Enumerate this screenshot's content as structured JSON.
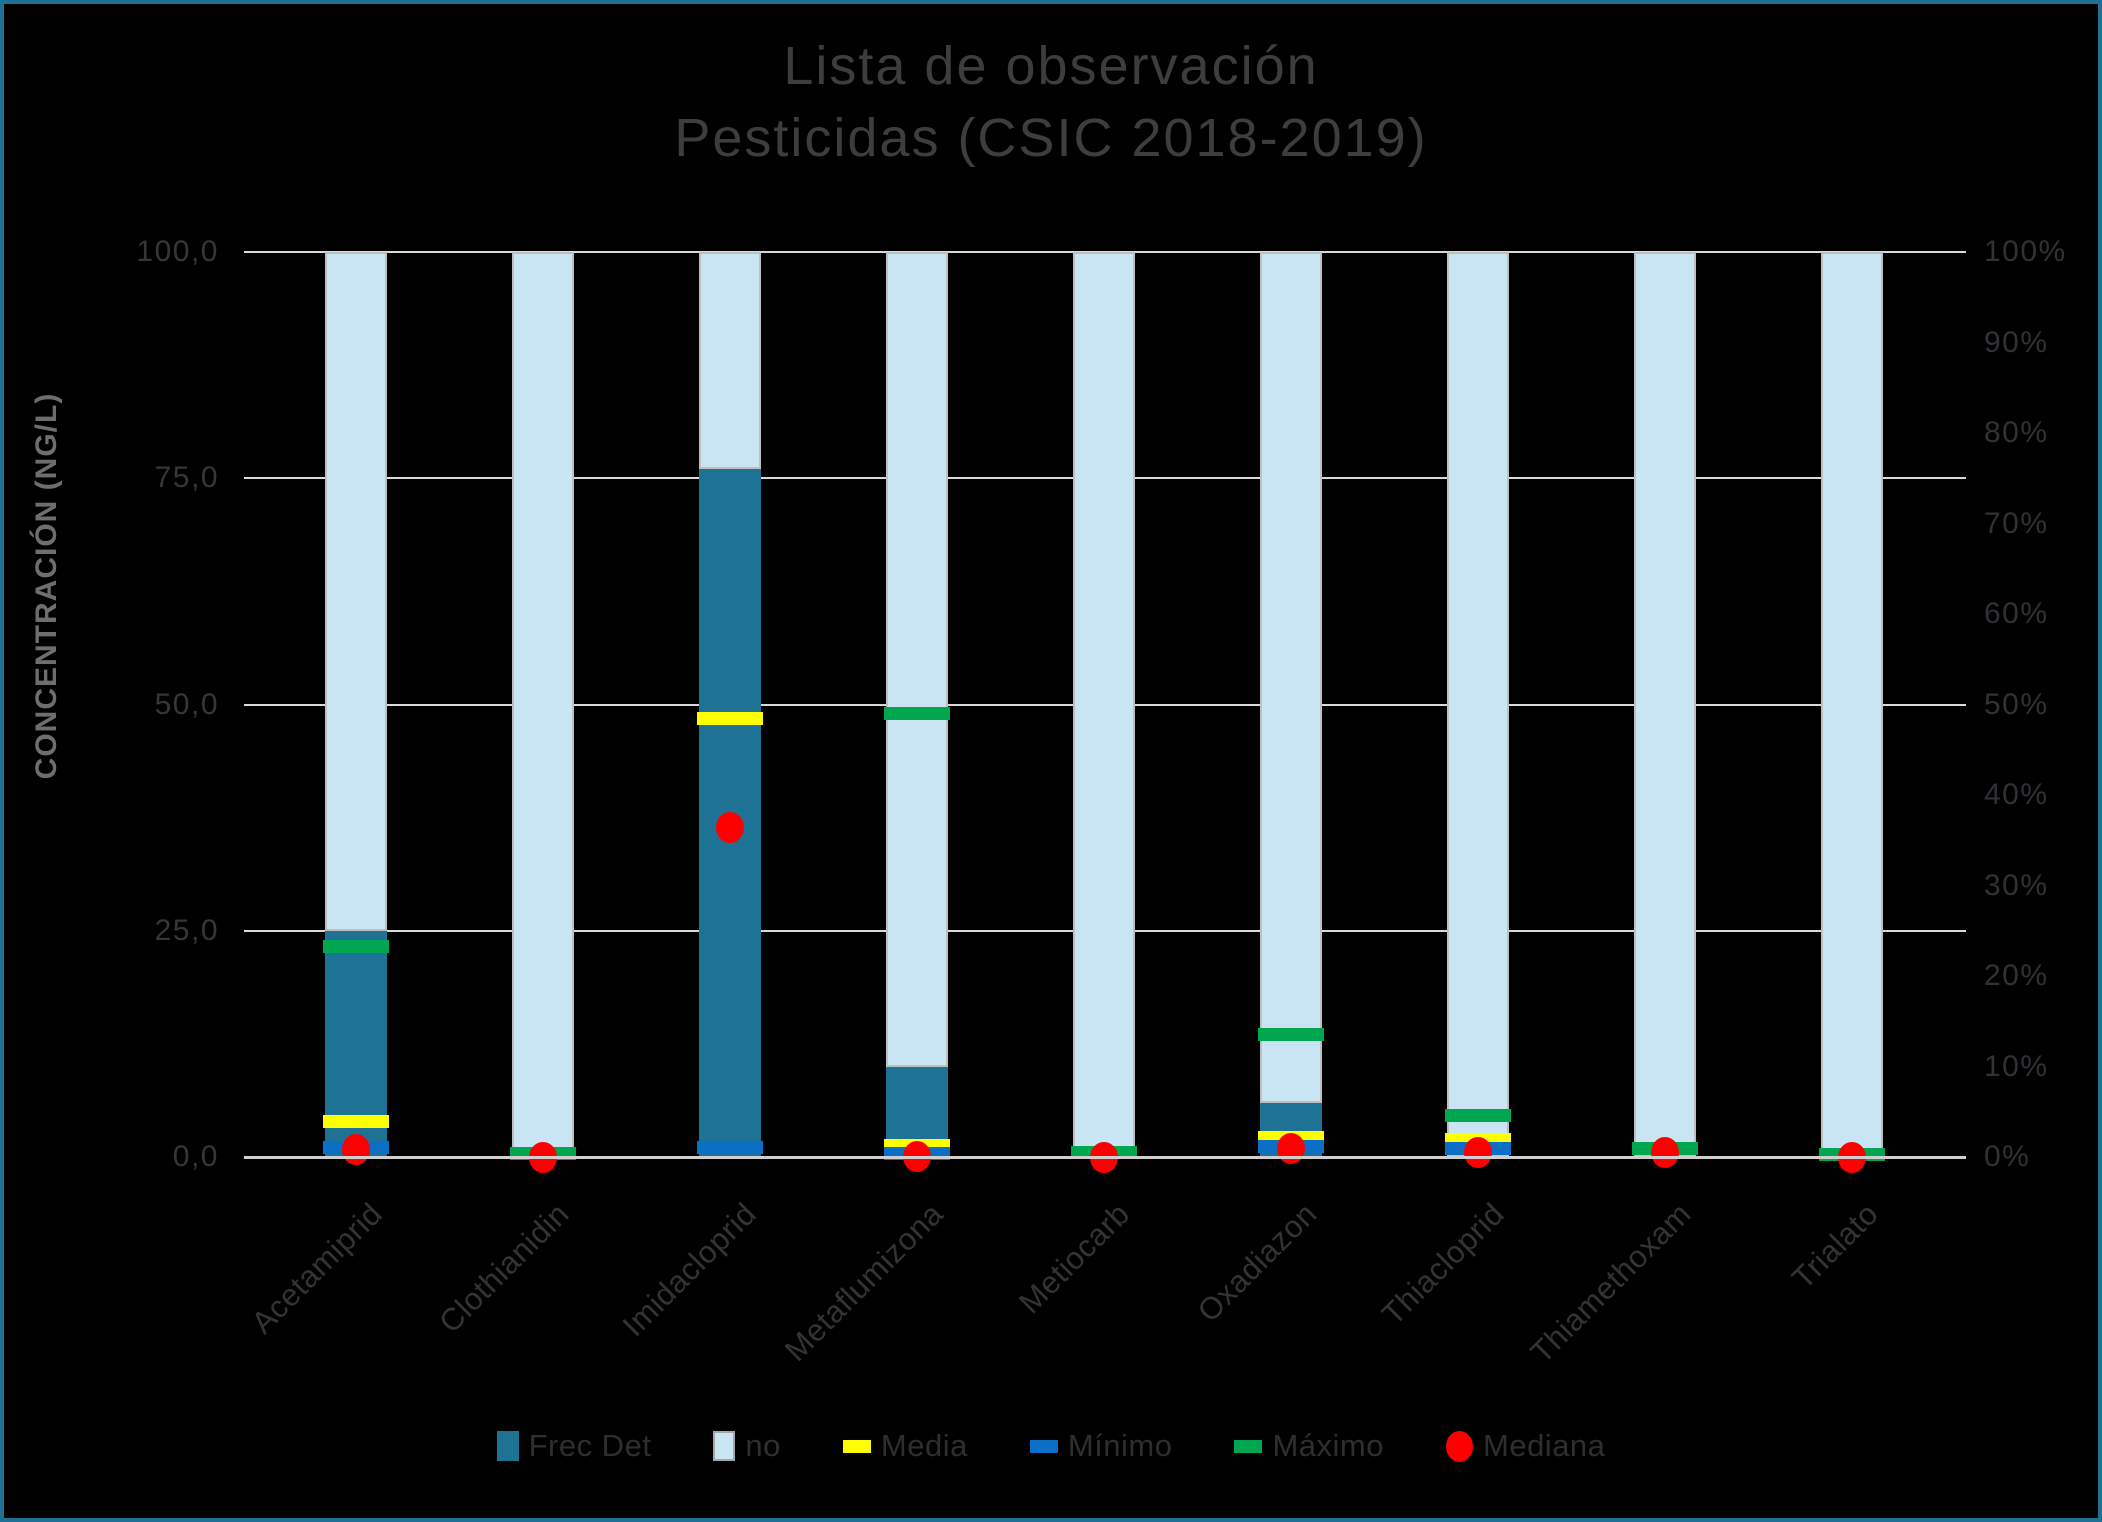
{
  "window": {
    "background_color": "#000000",
    "frame_border_color": "#1E7193"
  },
  "title": {
    "line1": "Lista de observación",
    "line2": "Pesticidas (CSIC 2018-2019)"
  },
  "axes": {
    "left": {
      "title": "CONCENTRACIÓN (NG/L)",
      "ticks": [
        {
          "label": "100,0",
          "value": 100
        },
        {
          "label": "75,0",
          "value": 75
        },
        {
          "label": "50,0",
          "value": 50
        },
        {
          "label": "25,0",
          "value": 25
        },
        {
          "label": "0,0",
          "value": 0
        }
      ],
      "range": [
        0,
        100
      ]
    },
    "right": {
      "ticks": [
        {
          "label": "100%",
          "value": 100
        },
        {
          "label": "90%",
          "value": 90
        },
        {
          "label": "80%",
          "value": 80
        },
        {
          "label": "70%",
          "value": 70
        },
        {
          "label": "60%",
          "value": 60
        },
        {
          "label": "50%",
          "value": 50
        },
        {
          "label": "40%",
          "value": 40
        },
        {
          "label": "30%",
          "value": 30
        },
        {
          "label": "20%",
          "value": 20
        },
        {
          "label": "10%",
          "value": 10
        },
        {
          "label": "0%",
          "value": 0
        }
      ],
      "range": [
        0,
        100
      ]
    },
    "gridlines_at": [
      100,
      75,
      50,
      25
    ],
    "gridline_color": "#D9D9D9",
    "axisline_color": "#D0CECE"
  },
  "legend": [
    {
      "label": "Frec Det",
      "swatch": "square",
      "color": "#1E7394"
    },
    {
      "label": "no",
      "swatch": "square-bordered",
      "color": "#C9E4F2"
    },
    {
      "label": "Media",
      "swatch": "dash",
      "color": "#FFFF00"
    },
    {
      "label": "Mínimo",
      "swatch": "dash",
      "color": "#0B70C5"
    },
    {
      "label": "Máximo",
      "swatch": "dash",
      "color": "#00A650"
    },
    {
      "label": "Mediana",
      "swatch": "dot",
      "color": "#FF0000"
    }
  ],
  "chart_data": {
    "type": "bar",
    "subtype": "100%-stacked-columns-with-value-markers",
    "title": "Lista de observación Pesticidas (CSIC 2018-2019)",
    "xlabel": "",
    "ylabel": "CONCENTRACIÓN (NG/L)",
    "ylim_left": [
      0,
      100
    ],
    "ylim_right_pct": [
      0,
      100
    ],
    "grid": true,
    "legend_position": "bottom",
    "categories": [
      "Acetamiprid",
      "Clothianidin",
      "Imidacloprid",
      "Metaflumizona",
      "Metiocarb",
      "Oxadiazon",
      "Thiacloprid",
      "Thiamethoxam",
      "Trialato"
    ],
    "series": [
      {
        "name": "Frec Det",
        "kind": "stacked-bar",
        "axis": "right",
        "unit": "%",
        "color": "#1E7394",
        "values": [
          25,
          0,
          76,
          10,
          0,
          6,
          0,
          0,
          0
        ]
      },
      {
        "name": "no",
        "kind": "stacked-bar",
        "axis": "right",
        "unit": "%",
        "color": "#C9E4F2",
        "values": [
          75,
          100,
          24,
          90,
          100,
          94,
          100,
          100,
          100
        ]
      },
      {
        "name": "Máximo",
        "kind": "marker-dash",
        "axis": "left",
        "unit": "ng/L",
        "color": "#00A650",
        "values": [
          23.3,
          0.4,
          null,
          49.0,
          0.5,
          13.5,
          4.6,
          0.9,
          0.3
        ]
      },
      {
        "name": "Media",
        "kind": "marker-dash",
        "axis": "left",
        "unit": "ng/L",
        "color": "#FFFF00",
        "values": [
          3.9,
          null,
          48.5,
          1.3,
          null,
          2.1,
          1.9,
          null,
          null
        ]
      },
      {
        "name": "Mínimo",
        "kind": "marker-dash",
        "axis": "left",
        "unit": "ng/L",
        "color": "#0B70C5",
        "values": [
          1.0,
          null,
          1.0,
          0.4,
          null,
          1.2,
          0.9,
          null,
          null
        ]
      },
      {
        "name": "Mediana",
        "kind": "marker-dot",
        "axis": "left",
        "unit": "ng/L",
        "color": "#FF0000",
        "values": [
          0.9,
          0.0,
          36.5,
          0.1,
          0.0,
          1.0,
          0.6,
          0.5,
          0.0
        ]
      }
    ]
  }
}
